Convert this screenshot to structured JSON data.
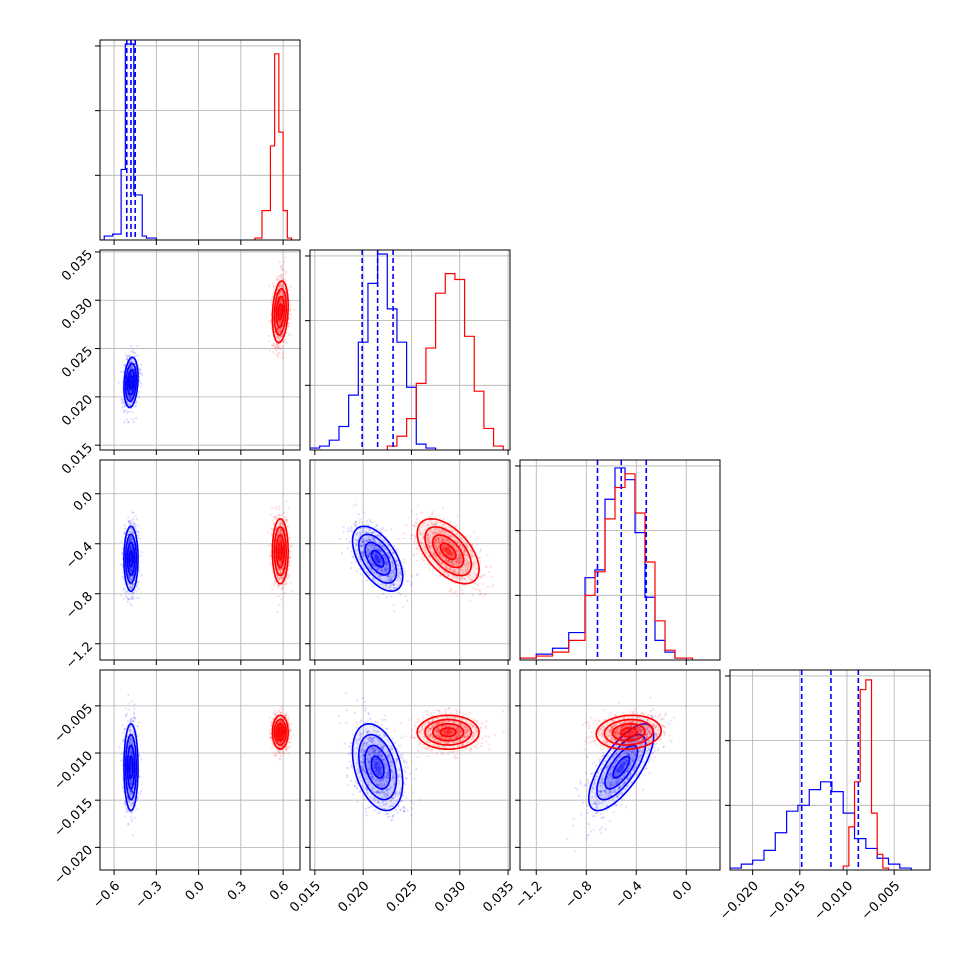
{
  "chart_data": {
    "type": "corner",
    "grid": true,
    "series": [
      {
        "color": "#0000ff",
        "means": [
          -0.48,
          0.0215,
          -0.52,
          -0.0115
        ],
        "sds": [
          0.025,
          0.0013,
          0.13,
          0.0023
        ],
        "corr": {
          "0-1": 0.2,
          "0-2": 0.0,
          "0-3": 0.0,
          "1-2": -0.55,
          "1-3": -0.35,
          "2-3": 0.72
        }
      },
      {
        "color": "#ff0000",
        "means": [
          0.58,
          0.0288,
          -0.46,
          -0.0078
        ],
        "sds": [
          0.028,
          0.0016,
          0.13,
          0.0009
        ],
        "corr": {
          "0-1": 0.2,
          "0-2": 0.0,
          "0-3": 0.0,
          "1-2": -0.55,
          "1-3": 0.0,
          "2-3": 0.1
        }
      }
    ],
    "quantile_lines": [
      [
        -0.51,
        -0.48,
        -0.45
      ],
      [
        0.0199,
        0.0215,
        0.0231
      ],
      [
        -0.71,
        -0.52,
        -0.32
      ],
      [
        -0.0148,
        -0.0117,
        -0.0088
      ]
    ],
    "ranges": [
      [
        -0.7,
        0.72
      ],
      [
        0.0145,
        0.0352
      ],
      [
        -1.33,
        0.27
      ],
      [
        -0.0224,
        -0.0012
      ]
    ],
    "histograms": [
      {
        "blue": [
          [
            -0.7,
            -0.67,
            0
          ],
          [
            -0.67,
            -0.61,
            0.02
          ],
          [
            -0.61,
            -0.55,
            0.03
          ],
          [
            -0.55,
            -0.52,
            0.36
          ],
          [
            -0.52,
            -0.49,
            1.0
          ],
          [
            -0.49,
            -0.46,
            1.0
          ],
          [
            -0.46,
            -0.43,
            0.23
          ],
          [
            -0.43,
            -0.4,
            0.23
          ],
          [
            -0.4,
            -0.37,
            0.02
          ],
          [
            -0.37,
            -0.3,
            0.01
          ]
        ],
        "red": [
          [
            0.4,
            0.45,
            0.01
          ],
          [
            0.45,
            0.51,
            0.15
          ],
          [
            0.51,
            0.54,
            0.48
          ],
          [
            0.54,
            0.57,
            0.95
          ],
          [
            0.57,
            0.6,
            0.55
          ],
          [
            0.6,
            0.63,
            0.15
          ],
          [
            0.63,
            0.66,
            0.01
          ]
        ]
      },
      {
        "blue": [
          [
            0.0145,
            0.0155,
            0.01
          ],
          [
            0.0155,
            0.0165,
            0.02
          ],
          [
            0.0165,
            0.0175,
            0.05
          ],
          [
            0.0175,
            0.0185,
            0.12
          ],
          [
            0.0185,
            0.0195,
            0.28
          ],
          [
            0.0195,
            0.0205,
            0.55
          ],
          [
            0.0205,
            0.0215,
            0.85
          ],
          [
            0.0215,
            0.0225,
            1.0
          ],
          [
            0.0225,
            0.0235,
            0.72
          ],
          [
            0.0235,
            0.0245,
            0.55
          ],
          [
            0.0245,
            0.0255,
            0.32
          ],
          [
            0.0255,
            0.0265,
            0.03
          ],
          [
            0.0265,
            0.0275,
            0.01
          ]
        ],
        "red": [
          [
            0.0225,
            0.0235,
            0.02
          ],
          [
            0.0235,
            0.0245,
            0.07
          ],
          [
            0.0245,
            0.0255,
            0.16
          ],
          [
            0.0255,
            0.0265,
            0.34
          ],
          [
            0.0265,
            0.0275,
            0.52
          ],
          [
            0.0275,
            0.0285,
            0.8
          ],
          [
            0.0285,
            0.0295,
            0.9
          ],
          [
            0.0295,
            0.0305,
            0.87
          ],
          [
            0.0305,
            0.0315,
            0.58
          ],
          [
            0.0315,
            0.0325,
            0.3
          ],
          [
            0.0325,
            0.0335,
            0.11
          ],
          [
            0.0335,
            0.0345,
            0.02
          ]
        ]
      },
      {
        "blue": [
          [
            -1.33,
            -1.2,
            0.01
          ],
          [
            -1.2,
            -1.07,
            0.03
          ],
          [
            -1.07,
            -0.94,
            0.06
          ],
          [
            -0.94,
            -0.81,
            0.14
          ],
          [
            -0.81,
            -0.73,
            0.42
          ],
          [
            -0.73,
            -0.65,
            0.46
          ],
          [
            -0.65,
            -0.57,
            0.82
          ],
          [
            -0.57,
            -0.49,
            0.98
          ],
          [
            -0.49,
            -0.41,
            0.92
          ],
          [
            -0.41,
            -0.33,
            0.65
          ],
          [
            -0.33,
            -0.25,
            0.32
          ],
          [
            -0.25,
            -0.17,
            0.1
          ],
          [
            -0.17,
            -0.09,
            0.04
          ],
          [
            -0.09,
            0.0,
            0.01
          ]
        ],
        "red": [
          [
            -1.33,
            -1.2,
            0.01
          ],
          [
            -1.2,
            -1.07,
            0.02
          ],
          [
            -1.07,
            -0.94,
            0.04
          ],
          [
            -0.94,
            -0.81,
            0.1
          ],
          [
            -0.81,
            -0.73,
            0.33
          ],
          [
            -0.73,
            -0.65,
            0.45
          ],
          [
            -0.65,
            -0.57,
            0.72
          ],
          [
            -0.57,
            -0.49,
            0.88
          ],
          [
            -0.49,
            -0.41,
            0.95
          ],
          [
            -0.41,
            -0.33,
            0.75
          ],
          [
            -0.33,
            -0.25,
            0.5
          ],
          [
            -0.25,
            -0.17,
            0.2
          ],
          [
            -0.17,
            -0.09,
            0.05
          ],
          [
            -0.09,
            0.05,
            0.01
          ]
        ]
      },
      {
        "blue": [
          [
            -0.0224,
            -0.0212,
            0.01
          ],
          [
            -0.0212,
            -0.02,
            0.03
          ],
          [
            -0.02,
            -0.0188,
            0.05
          ],
          [
            -0.0188,
            -0.0176,
            0.1
          ],
          [
            -0.0176,
            -0.0164,
            0.19
          ],
          [
            -0.0164,
            -0.0152,
            0.3
          ],
          [
            -0.0152,
            -0.014,
            0.33
          ],
          [
            -0.014,
            -0.0128,
            0.41
          ],
          [
            -0.0128,
            -0.0116,
            0.45
          ],
          [
            -0.0116,
            -0.0104,
            0.4
          ],
          [
            -0.0104,
            -0.0092,
            0.29
          ],
          [
            -0.0092,
            -0.008,
            0.16
          ],
          [
            -0.008,
            -0.0068,
            0.11
          ],
          [
            -0.0068,
            -0.0056,
            0.06
          ],
          [
            -0.0056,
            -0.0044,
            0.03
          ],
          [
            -0.0044,
            -0.0032,
            0.01
          ]
        ],
        "red": [
          [
            -0.0104,
            -0.0098,
            0.02
          ],
          [
            -0.0098,
            -0.0092,
            0.22
          ],
          [
            -0.0092,
            -0.0086,
            0.45
          ],
          [
            -0.0086,
            -0.008,
            0.92
          ],
          [
            -0.008,
            -0.0074,
            0.97
          ],
          [
            -0.0074,
            -0.0068,
            0.29
          ],
          [
            -0.0068,
            -0.0062,
            0.08
          ],
          [
            -0.0062,
            -0.0056,
            0.01
          ]
        ]
      }
    ],
    "ticks": [
      [
        {
          "v": -0.6,
          "label": "−0.6"
        },
        {
          "v": -0.3,
          "label": "−0.3"
        },
        {
          "v": 0.0,
          "label": "0.0"
        },
        {
          "v": 0.3,
          "label": "0.3"
        },
        {
          "v": 0.6,
          "label": "0.6"
        }
      ],
      [
        {
          "v": 0.015,
          "label": "0.015"
        },
        {
          "v": 0.02,
          "label": "0.020"
        },
        {
          "v": 0.025,
          "label": "0.025"
        },
        {
          "v": 0.03,
          "label": "0.030"
        },
        {
          "v": 0.035,
          "label": "0.035"
        }
      ],
      [
        {
          "v": -1.2,
          "label": "−1.2"
        },
        {
          "v": -0.8,
          "label": "−0.8"
        },
        {
          "v": -0.4,
          "label": "−0.4"
        },
        {
          "v": 0.0,
          "label": "0.0"
        }
      ],
      [
        {
          "v": -0.02,
          "label": "−0.020"
        },
        {
          "v": -0.015,
          "label": "−0.015"
        },
        {
          "v": -0.01,
          "label": "−0.010"
        },
        {
          "v": -0.005,
          "label": "−0.005"
        }
      ]
    ]
  }
}
